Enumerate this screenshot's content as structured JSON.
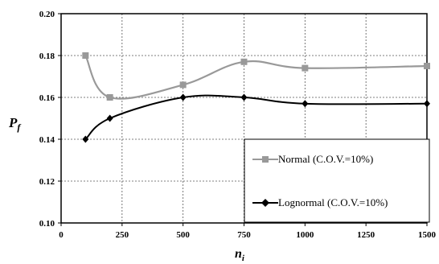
{
  "chart_data": {
    "type": "line",
    "xlabel": "n",
    "xlabel_sub": "i",
    "ylabel": "P",
    "ylabel_sub": "f",
    "x_ticks": [
      0,
      250,
      500,
      750,
      1000,
      1250,
      1500
    ],
    "x_tick_labels": [
      "0",
      "250",
      "500",
      "750",
      "1000",
      "1250",
      "1500"
    ],
    "y_ticks": [
      0.1,
      0.12,
      0.14,
      0.16,
      0.18,
      0.2
    ],
    "y_tick_labels": [
      "0.10",
      "0.12",
      "0.14",
      "0.16",
      "0.18",
      "0.20"
    ],
    "xlim": [
      0,
      1500
    ],
    "ylim": [
      0.1,
      0.2
    ],
    "grid": "dashed",
    "legend_position": "bottom-right",
    "series": [
      {
        "name": "Normal (C.O.V.=10%)",
        "color": "#999999",
        "marker": "square",
        "x": [
          100,
          200,
          500,
          750,
          1000,
          1500
        ],
        "y": [
          0.18,
          0.16,
          0.166,
          0.177,
          0.174,
          0.175
        ]
      },
      {
        "name": "Lognormal (C.O.V.=10%)",
        "color": "#000000",
        "marker": "diamond",
        "x": [
          100,
          200,
          500,
          750,
          1000,
          1500
        ],
        "y": [
          0.14,
          0.15,
          0.16,
          0.16,
          0.157,
          0.157
        ]
      }
    ]
  }
}
